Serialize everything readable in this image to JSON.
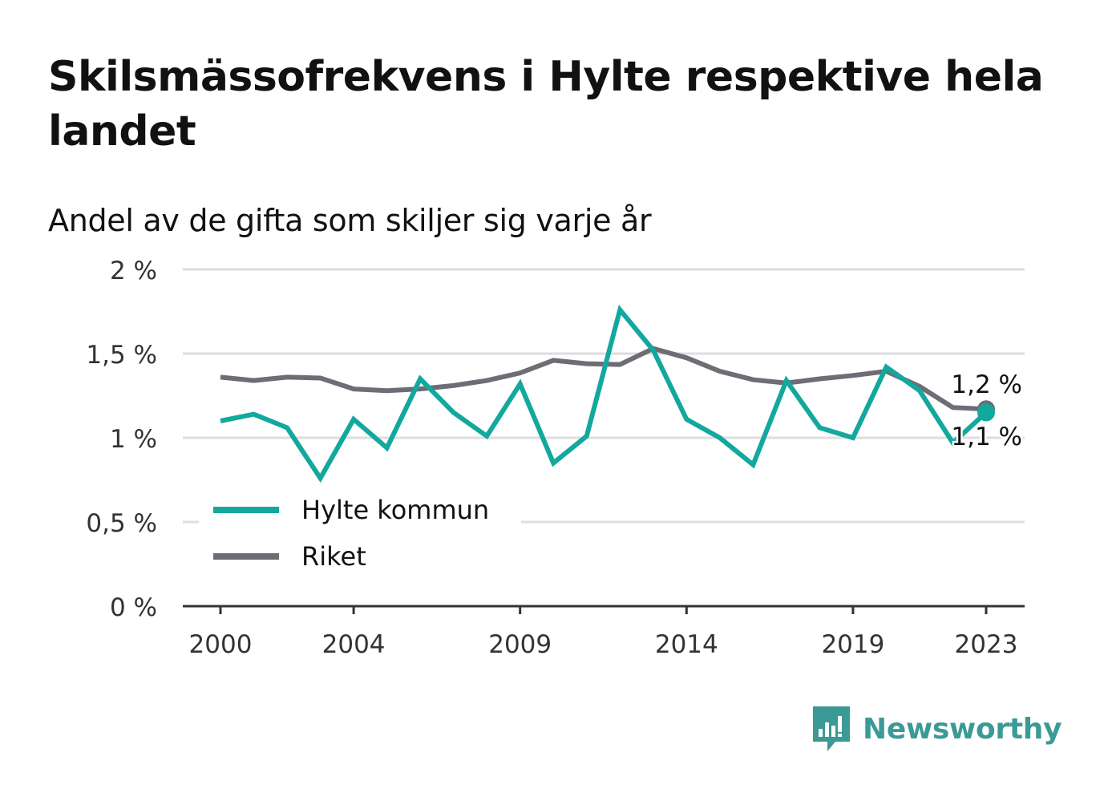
{
  "title": "Skilsmässofrekvens i Hylte respektive hela landet",
  "subtitle": "Andel av de gifta som skiljer sig varje år",
  "brand": {
    "name": "Newsworthy",
    "icon": "bar-chart-speech-bubble-icon",
    "color": "#3b9a96"
  },
  "chart_data": {
    "type": "line",
    "title": "Skilsmässofrekvens i Hylte respektive hela landet",
    "subtitle": "Andel av de gifta som skiljer sig varje år",
    "x": [
      2000,
      2001,
      2002,
      2003,
      2004,
      2005,
      2006,
      2007,
      2008,
      2009,
      2010,
      2011,
      2012,
      2013,
      2014,
      2015,
      2016,
      2017,
      2018,
      2019,
      2020,
      2021,
      2022,
      2023
    ],
    "x_ticks": [
      2000,
      2004,
      2009,
      2014,
      2019,
      2023
    ],
    "x_tick_labels": [
      "2000",
      "2004",
      "2009",
      "2014",
      "2019",
      "2023"
    ],
    "xlim": [
      2000,
      2023
    ],
    "ylim": [
      0,
      2
    ],
    "y_ticks": [
      0,
      0.5,
      1,
      1.5,
      2
    ],
    "y_tick_labels": [
      "0 %",
      "0,5 %",
      "1 %",
      "1,5 %",
      "2 %"
    ],
    "grid": true,
    "legend_position": "bottom-left",
    "series": [
      {
        "name": "Riket",
        "color": "#6e6d75",
        "values": [
          1.36,
          1.34,
          1.36,
          1.355,
          1.29,
          1.28,
          1.29,
          1.31,
          1.34,
          1.385,
          1.46,
          1.44,
          1.435,
          1.53,
          1.475,
          1.395,
          1.345,
          1.325,
          1.35,
          1.37,
          1.395,
          1.305,
          1.18,
          1.17
        ],
        "end_label": "1,2 %"
      },
      {
        "name": "Hylte kommun",
        "color": "#13a89e",
        "values": [
          1.1,
          1.14,
          1.06,
          0.76,
          1.11,
          0.94,
          1.35,
          1.15,
          1.01,
          1.32,
          0.85,
          1.01,
          1.76,
          1.52,
          1.11,
          1.0,
          0.84,
          1.34,
          1.06,
          1.0,
          1.42,
          1.28,
          0.97,
          1.15
        ],
        "end_label": "1,1 %"
      }
    ]
  }
}
